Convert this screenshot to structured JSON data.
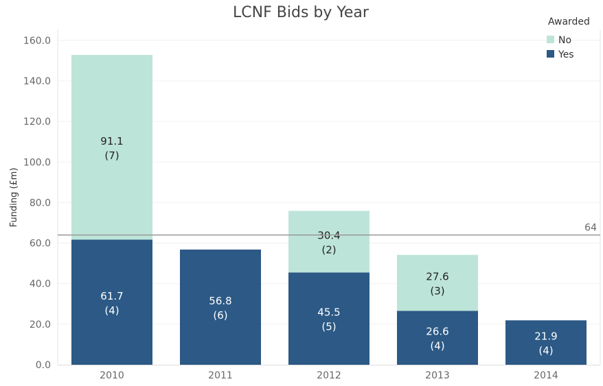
{
  "chart_data": {
    "type": "bar",
    "stacked": true,
    "title": "LCNF Bids by Year",
    "ylabel": "Funding (£m)",
    "xlabel": "",
    "categories": [
      "2010",
      "2011",
      "2012",
      "2013",
      "2014"
    ],
    "ylim": [
      0,
      160
    ],
    "yticks": [
      "0.0",
      "20.0",
      "40.0",
      "60.0",
      "80.0",
      "100.0",
      "120.0",
      "140.0",
      "160.0"
    ],
    "grid": true,
    "legend": {
      "title": "Awarded",
      "position": "top-right",
      "entries": [
        {
          "name": "No",
          "color": "#bde4d8"
        },
        {
          "name": "Yes",
          "color": "#2c5985"
        }
      ]
    },
    "series": [
      {
        "name": "Yes",
        "color": "#2c5985",
        "label_color": "#ffffff",
        "values": [
          61.7,
          56.8,
          45.5,
          26.6,
          21.9
        ],
        "counts": [
          "(4)",
          "(6)",
          "(5)",
          "(4)",
          "(4)"
        ]
      },
      {
        "name": "No",
        "color": "#bde4d8",
        "label_color": "#222222",
        "values": [
          91.1,
          null,
          30.4,
          27.6,
          null
        ],
        "counts": [
          "(7)",
          null,
          "(2)",
          "(3)",
          null
        ]
      }
    ],
    "reference_line": {
      "value": 64,
      "label": "64",
      "color": "#999999"
    }
  }
}
